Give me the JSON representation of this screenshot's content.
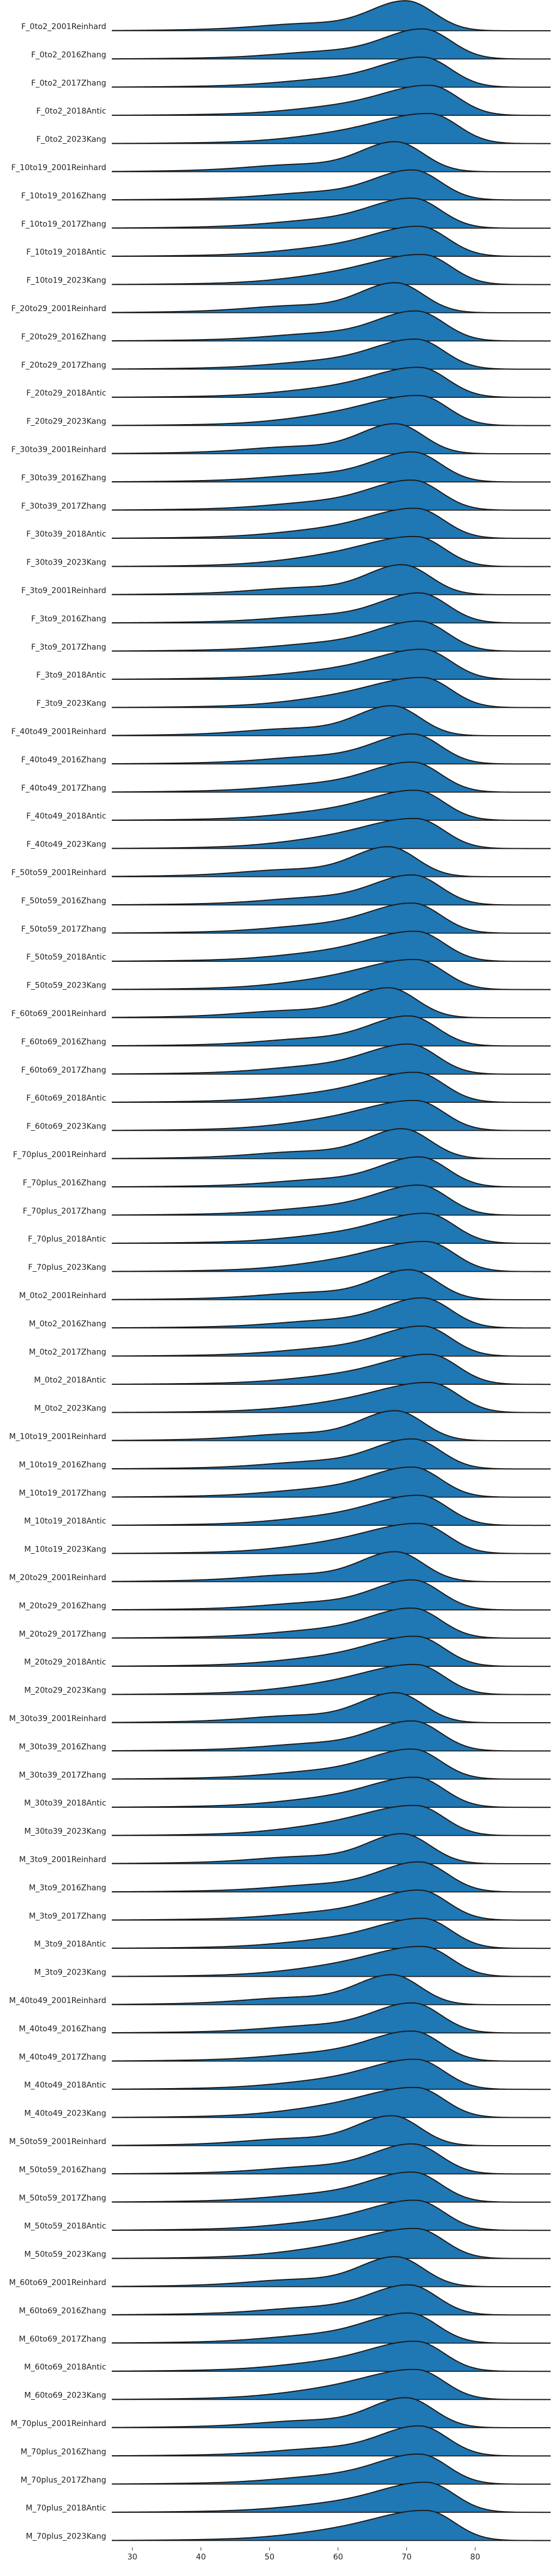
{
  "chart_data": {
    "type": "ridgeline",
    "title": "",
    "xlabel": "",
    "ylabel": "",
    "xlim": [
      27,
      91
    ],
    "x_ticks": [
      30,
      40,
      50,
      60,
      70,
      80
    ],
    "grid": false,
    "legend": "none",
    "fill_color": "#1f77b4",
    "line_color": "#1a1a1a",
    "categories": [
      "F_0to2_2001Reinhard",
      "F_0to2_2016Zhang",
      "F_0to2_2017Zhang",
      "F_0to2_2018Antic",
      "F_0to2_2023Kang",
      "F_10to19_2001Reinhard",
      "F_10to19_2016Zhang",
      "F_10to19_2017Zhang",
      "F_10to19_2018Antic",
      "F_10to19_2023Kang",
      "F_20to29_2001Reinhard",
      "F_20to29_2016Zhang",
      "F_20to29_2017Zhang",
      "F_20to29_2018Antic",
      "F_20to29_2023Kang",
      "F_30to39_2001Reinhard",
      "F_30to39_2016Zhang",
      "F_30to39_2017Zhang",
      "F_30to39_2018Antic",
      "F_30to39_2023Kang",
      "F_3to9_2001Reinhard",
      "F_3to9_2016Zhang",
      "F_3to9_2017Zhang",
      "F_3to9_2018Antic",
      "F_3to9_2023Kang",
      "F_40to49_2001Reinhard",
      "F_40to49_2016Zhang",
      "F_40to49_2017Zhang",
      "F_40to49_2018Antic",
      "F_40to49_2023Kang",
      "F_50to59_2001Reinhard",
      "F_50to59_2016Zhang",
      "F_50to59_2017Zhang",
      "F_50to59_2018Antic",
      "F_50to59_2023Kang",
      "F_60to69_2001Reinhard",
      "F_60to69_2016Zhang",
      "F_60to69_2017Zhang",
      "F_60to69_2018Antic",
      "F_60to69_2023Kang",
      "F_70plus_2001Reinhard",
      "F_70plus_2016Zhang",
      "F_70plus_2017Zhang",
      "F_70plus_2018Antic",
      "F_70plus_2023Kang",
      "M_0to2_2001Reinhard",
      "M_0to2_2016Zhang",
      "M_0to2_2017Zhang",
      "M_0to2_2018Antic",
      "M_0to2_2023Kang",
      "M_10to19_2001Reinhard",
      "M_10to19_2016Zhang",
      "M_10to19_2017Zhang",
      "M_10to19_2018Antic",
      "M_10to19_2023Kang",
      "M_20to29_2001Reinhard",
      "M_20to29_2016Zhang",
      "M_20to29_2017Zhang",
      "M_20to29_2018Antic",
      "M_20to29_2023Kang",
      "M_30to39_2001Reinhard",
      "M_30to39_2016Zhang",
      "M_30to39_2017Zhang",
      "M_30to39_2018Antic",
      "M_30to39_2023Kang",
      "M_3to9_2001Reinhard",
      "M_3to9_2016Zhang",
      "M_3to9_2017Zhang",
      "M_3to9_2018Antic",
      "M_3to9_2023Kang",
      "M_40to49_2001Reinhard",
      "M_40to49_2016Zhang",
      "M_40to49_2017Zhang",
      "M_40to49_2018Antic",
      "M_40to49_2023Kang",
      "M_50to59_2001Reinhard",
      "M_50to59_2016Zhang",
      "M_50to59_2017Zhang",
      "M_50to59_2018Antic",
      "M_50to59_2023Kang",
      "M_60to69_2001Reinhard",
      "M_60to69_2016Zhang",
      "M_60to69_2017Zhang",
      "M_60to69_2018Antic",
      "M_60to69_2023Kang",
      "M_70plus_2001Reinhard",
      "M_70plus_2016Zhang",
      "M_70plus_2017Zhang",
      "M_70plus_2018Antic",
      "M_70plus_2023Kang"
    ],
    "peaks": [
      70.0,
      72.5,
      72.5,
      73.5,
      73.5,
      68.5,
      71.0,
      71.0,
      72.0,
      72.5,
      68.5,
      71.5,
      71.5,
      72.0,
      72.0,
      68.5,
      71.0,
      71.0,
      71.5,
      71.5,
      69.5,
      72.0,
      72.0,
      72.5,
      72.5,
      68.0,
      71.0,
      71.0,
      71.5,
      71.5,
      67.5,
      71.0,
      71.0,
      71.5,
      71.5,
      67.5,
      70.5,
      70.5,
      71.5,
      71.5,
      69.5,
      72.0,
      72.0,
      73.0,
      73.0,
      70.5,
      72.5,
      72.5,
      73.5,
      73.5,
      68.5,
      71.0,
      71.0,
      72.0,
      72.0,
      68.5,
      71.0,
      71.0,
      71.5,
      71.5,
      68.5,
      71.0,
      71.0,
      71.5,
      71.5,
      69.5,
      72.0,
      72.0,
      72.5,
      72.5,
      68.0,
      71.0,
      71.0,
      71.5,
      71.5,
      68.0,
      71.0,
      71.0,
      71.5,
      71.5,
      68.5,
      70.5,
      70.5,
      71.5,
      71.5,
      70.0,
      72.0,
      72.0,
      73.0,
      73.0
    ]
  }
}
